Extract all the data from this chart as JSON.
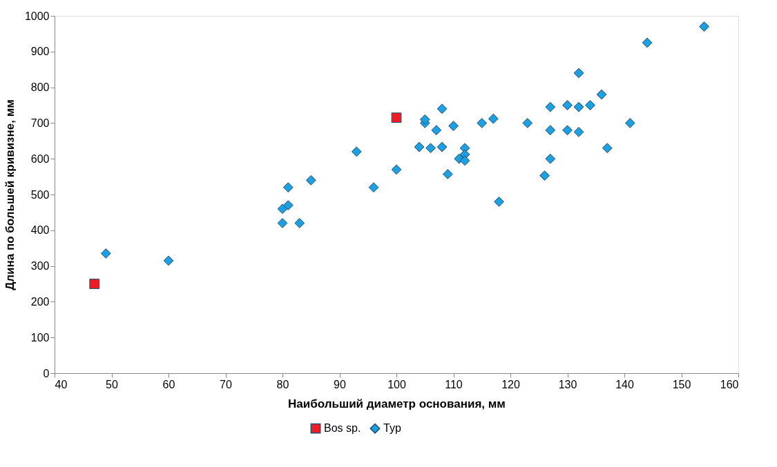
{
  "chart_data": {
    "type": "scatter",
    "xlabel": "Наибольший диаметр основания, мм",
    "ylabel": "Длина по большей кривизне, мм",
    "xlim": [
      40,
      160
    ],
    "xticks": [
      40,
      50,
      60,
      70,
      80,
      90,
      100,
      110,
      120,
      130,
      140,
      150,
      160
    ],
    "ylim": [
      0,
      1000
    ],
    "yticks": [
      0,
      100,
      200,
      300,
      400,
      500,
      600,
      700,
      800,
      900,
      1000
    ],
    "grid": false,
    "legend": "bottom",
    "series": [
      {
        "name": "Bos sp.",
        "color": "#ee1c25",
        "marker": "square",
        "x": [
          47,
          100
        ],
        "values": [
          250,
          715
        ]
      },
      {
        "name": "Typ",
        "color": "#1e9fe0",
        "marker": "diamond",
        "x": [
          49,
          60,
          80,
          80,
          81,
          81,
          83,
          85,
          93,
          96,
          100,
          104,
          105,
          105,
          106,
          107,
          108,
          108,
          109,
          110,
          111,
          112,
          112,
          112,
          115,
          117,
          118,
          123,
          126,
          127,
          127,
          127,
          130,
          130,
          132,
          132,
          132,
          134,
          136,
          137,
          141,
          144,
          154
        ],
        "values": [
          335,
          315,
          460,
          420,
          470,
          520,
          420,
          540,
          620,
          520,
          570,
          633,
          700,
          710,
          630,
          680,
          740,
          633,
          557,
          692,
          600,
          630,
          612,
          595,
          700,
          712,
          480,
          700,
          553,
          745,
          680,
          600,
          750,
          680,
          840,
          745,
          675,
          750,
          780,
          630,
          700,
          925,
          970
        ]
      }
    ]
  }
}
